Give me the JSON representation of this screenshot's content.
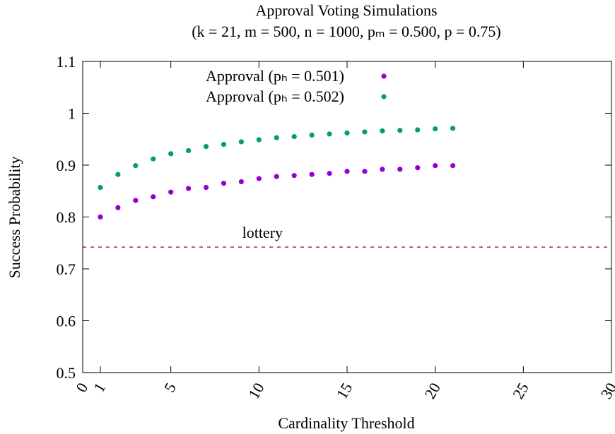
{
  "chart_data": {
    "type": "scatter",
    "title": "Approval Voting Simulations",
    "subtitle": "(k = 21, m = 500, n = 1000, pₘ = 0.500, p = 0.75)",
    "xlabel": "Cardinality Threshold",
    "ylabel": "Success Probability",
    "x": [
      1,
      2,
      3,
      4,
      5,
      6,
      7,
      8,
      9,
      10,
      11,
      12,
      13,
      14,
      15,
      16,
      17,
      18,
      19,
      20,
      21
    ],
    "series": [
      {
        "name": "Approval (pₕ = 0.501)",
        "color": "#9400d3",
        "values": [
          0.8,
          0.818,
          0.832,
          0.839,
          0.848,
          0.855,
          0.857,
          0.865,
          0.868,
          0.874,
          0.878,
          0.88,
          0.882,
          0.884,
          0.888,
          0.888,
          0.892,
          0.892,
          0.895,
          0.899,
          0.899
        ]
      },
      {
        "name": "Approval (pₕ = 0.502)",
        "color": "#009e73",
        "values": [
          0.857,
          0.882,
          0.899,
          0.912,
          0.922,
          0.928,
          0.936,
          0.94,
          0.945,
          0.949,
          0.953,
          0.955,
          0.958,
          0.96,
          0.962,
          0.964,
          0.966,
          0.967,
          0.968,
          0.97,
          0.971
        ]
      }
    ],
    "reference_line": {
      "label": "lottery",
      "value": 0.742,
      "color": "#8b0a1a"
    },
    "xlim": [
      0,
      30
    ],
    "xticks": [
      0,
      1,
      5,
      10,
      15,
      20,
      25,
      30
    ],
    "ylim": [
      0.5,
      1.1
    ],
    "yticks": [
      0.5,
      0.6,
      0.7,
      0.8,
      0.9,
      1,
      1.1
    ],
    "legend": "top-left",
    "grid": false
  }
}
